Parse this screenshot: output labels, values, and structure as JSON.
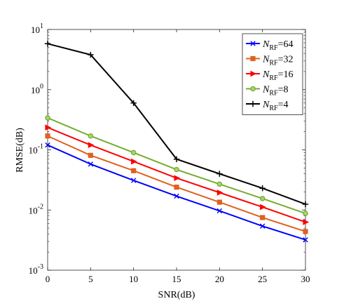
{
  "chart_data": {
    "type": "line",
    "xlabel": "SNR(dB)",
    "ylabel": "RMSE(dB)",
    "xlim": [
      0,
      30
    ],
    "ylim": [
      0.001,
      10
    ],
    "yscale": "log",
    "x_ticks": [
      0,
      5,
      10,
      15,
      20,
      25,
      30
    ],
    "y_ticks": [
      {
        "value": 0.001,
        "base": "10",
        "exp": "-3"
      },
      {
        "value": 0.01,
        "base": "10",
        "exp": "-2"
      },
      {
        "value": 0.1,
        "base": "10",
        "exp": "-1"
      },
      {
        "value": 1,
        "base": "10",
        "exp": "0"
      },
      {
        "value": 10,
        "base": "10",
        "exp": "1"
      }
    ],
    "grid": false,
    "legend_position": "top-right",
    "x": [
      0,
      5,
      10,
      15,
      20,
      25,
      30
    ],
    "series": [
      {
        "label_main": "N",
        "label_sub": "RF",
        "label_value": "=64",
        "color": "#0000ff",
        "marker": "x",
        "values": [
          0.12,
          0.058,
          0.031,
          0.017,
          0.0097,
          0.0054,
          0.0032
        ]
      },
      {
        "label_main": "N",
        "label_sub": "RF",
        "label_value": "=32",
        "color": "#e06020",
        "marker": "square",
        "values": [
          0.17,
          0.081,
          0.045,
          0.024,
          0.0135,
          0.0075,
          0.0044
        ]
      },
      {
        "label_main": "N",
        "label_sub": "RF",
        "label_value": "=16",
        "color": "#ff0000",
        "marker": "triangle-right",
        "values": [
          0.235,
          0.12,
          0.064,
          0.034,
          0.0195,
          0.0112,
          0.0063
        ]
      },
      {
        "label_main": "N",
        "label_sub": "RF",
        "label_value": "=8",
        "color": "#77ac30",
        "marker": "circle",
        "values": [
          0.34,
          0.17,
          0.09,
          0.047,
          0.027,
          0.0155,
          0.0088
        ]
      },
      {
        "label_main": "N",
        "label_sub": "RF",
        "label_value": "=4",
        "color": "#000000",
        "marker": "plus",
        "values": [
          5.8,
          3.8,
          0.6,
          0.07,
          0.04,
          0.023,
          0.0125
        ]
      }
    ]
  }
}
